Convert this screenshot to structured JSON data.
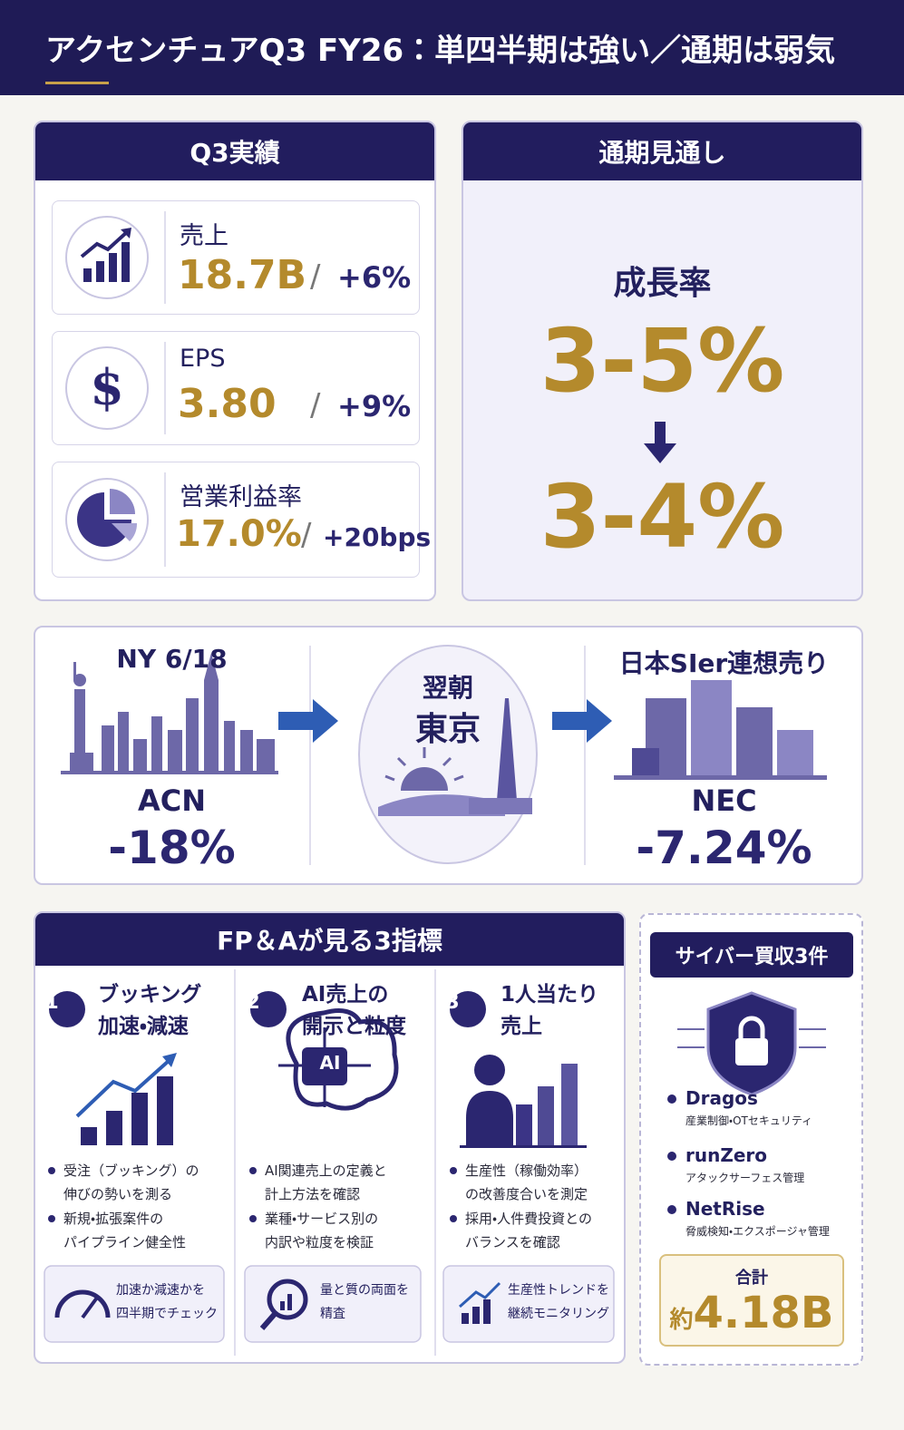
{
  "header": {
    "title": "アクセンチュアQ3 FY26：単四半期は強い／通期は弱気"
  },
  "q3": {
    "title": "Q3実績",
    "separator": "/",
    "items": [
      {
        "label": "売上",
        "value": "18.7B",
        "change": "+6%"
      },
      {
        "label": "EPS",
        "value": "3.80",
        "change": "+9%"
      },
      {
        "label": "営業利益率",
        "value": "17.0%",
        "change": "+20bps"
      }
    ]
  },
  "outlook": {
    "title": "通期見通し",
    "label": "成長率",
    "before": "3-5%",
    "after": "3-4%"
  },
  "flow": {
    "ny": {
      "title": "NY 6/18",
      "ticker": "ACN",
      "change": "-18%"
    },
    "tokyo": {
      "line1": "翌朝",
      "line2": "東京"
    },
    "japan": {
      "title": "日本SIer連想売り",
      "ticker": "NEC",
      "change": "-7.24%"
    }
  },
  "fpa": {
    "title": "FP＆Aが見る3指標",
    "metrics": [
      {
        "number": "1",
        "title": [
          "ブッキング",
          "加速・減速"
        ],
        "bullets": [
          [
            "受注（ブッキング）の",
            "伸びの勢いを測る"
          ],
          [
            "新規・拡張案件の",
            "パイプライン健全性"
          ]
        ],
        "note": [
          "加速か減速かを",
          "四半期でチェック"
        ]
      },
      {
        "number": "2",
        "title": [
          "AI売上の",
          "開示と粒度"
        ],
        "bullets": [
          [
            "AI関連売上の定義と",
            "計上方法を確認"
          ],
          [
            "業種・サービス別の",
            "内訳や粒度を検証"
          ]
        ],
        "note": [
          "量と質の両面を",
          "精査"
        ]
      },
      {
        "number": "3",
        "title": [
          "1人当たり",
          "売上"
        ],
        "bullets": [
          [
            "生産性（稼働効率）",
            "の改善度合いを測定"
          ],
          [
            "採用・人件費投資との",
            "バランスを確認"
          ]
        ],
        "note": [
          "生産性トレンドを",
          "継続モニタリング"
        ]
      }
    ],
    "icon_text": "AI"
  },
  "cyber": {
    "title": "サイバー買収3件",
    "deals": [
      {
        "name": "Dragos",
        "desc": "産業制御・OTセキュリティ"
      },
      {
        "name": "runZero",
        "desc": "アタックサーフェス管理"
      },
      {
        "name": "NetRise",
        "desc": "脅威検知・エクスポージャ管理"
      }
    ],
    "total_label": "合計",
    "total_prefix": "約",
    "total": "4.18B"
  }
}
